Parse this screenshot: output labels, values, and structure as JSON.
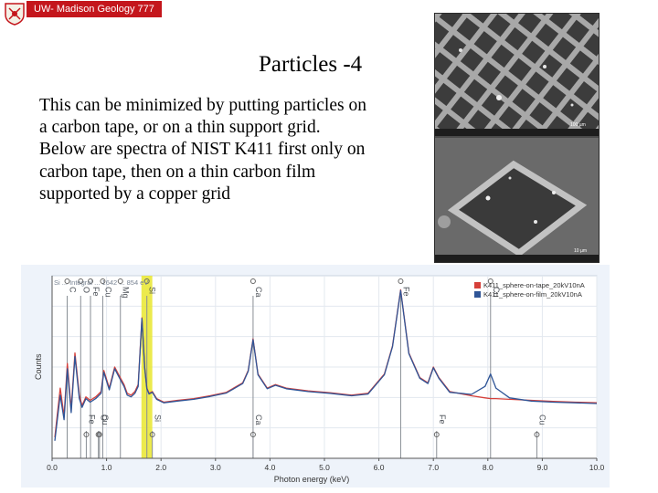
{
  "header": {
    "banner_text": "UW- Madison Geology 777"
  },
  "slide": {
    "title": "Particles -4",
    "body": "This can be minimized by putting particles on a carbon tape, or on a thin support grid. Below are spectra of NIST K411 first only on carbon tape, then on a thin carbon film supported by a copper grid"
  },
  "sem_images": {
    "top_scale": "100 µm",
    "bottom_scale": "10 µm"
  },
  "chart_data": {
    "type": "line",
    "xlabel": "Photon energy (keV)",
    "ylabel": "Counts",
    "xlim": [
      0.0,
      10.0
    ],
    "x_ticks": [
      "0.0",
      "1.0",
      "2.0",
      "3.0",
      "4.0",
      "5.0",
      "6.0",
      "7.0",
      "8.0",
      "9.0",
      "10.0"
    ],
    "grid": true,
    "legend_position": "top-right",
    "highlight_region_kev": [
      1.64,
      1.84
    ],
    "top_info_text": "Si ... Integral ... 1642 ... 854 eV",
    "series": [
      {
        "name": "K411_sphere-on-tape_20kV10nA",
        "color": "#d6403a",
        "x": [
          0.05,
          0.15,
          0.22,
          0.28,
          0.35,
          0.42,
          0.5,
          0.55,
          0.62,
          0.7,
          0.8,
          0.9,
          0.95,
          1.05,
          1.15,
          1.25,
          1.32,
          1.38,
          1.45,
          1.52,
          1.58,
          1.65,
          1.7,
          1.74,
          1.78,
          1.84,
          1.92,
          2.05,
          2.3,
          2.6,
          2.9,
          3.2,
          3.5,
          3.6,
          3.69,
          3.78,
          3.95,
          4.1,
          4.3,
          4.7,
          5.1,
          5.5,
          5.8,
          6.1,
          6.25,
          6.4,
          6.55,
          6.75,
          6.9,
          7.0,
          7.1,
          7.3,
          7.7,
          7.95,
          8.05,
          8.15,
          8.4,
          8.8,
          9.2,
          9.6,
          10.0
        ],
        "y": [
          60,
          200,
          120,
          270,
          140,
          300,
          180,
          150,
          175,
          165,
          175,
          190,
          250,
          200,
          260,
          230,
          210,
          185,
          180,
          190,
          210,
          400,
          260,
          200,
          185,
          190,
          170,
          160,
          165,
          170,
          178,
          188,
          215,
          250,
          340,
          240,
          200,
          210,
          200,
          192,
          187,
          180,
          185,
          240,
          320,
          480,
          300,
          230,
          215,
          260,
          230,
          190,
          178,
          172,
          170,
          170,
          168,
          165,
          162,
          160,
          158
        ]
      },
      {
        "name": "K411_sphere-on-film_20kV10nA",
        "color": "#2f5597",
        "x": [
          0.05,
          0.15,
          0.22,
          0.28,
          0.35,
          0.42,
          0.5,
          0.55,
          0.62,
          0.7,
          0.8,
          0.9,
          0.95,
          1.05,
          1.15,
          1.25,
          1.32,
          1.38,
          1.45,
          1.52,
          1.58,
          1.65,
          1.7,
          1.74,
          1.78,
          1.84,
          1.92,
          2.05,
          2.3,
          2.6,
          2.9,
          3.2,
          3.5,
          3.6,
          3.69,
          3.78,
          3.95,
          4.1,
          4.3,
          4.7,
          5.1,
          5.5,
          5.8,
          6.1,
          6.25,
          6.4,
          6.55,
          6.75,
          6.9,
          7.0,
          7.1,
          7.3,
          7.7,
          7.95,
          8.05,
          8.15,
          8.4,
          8.8,
          9.2,
          9.6,
          10.0
        ],
        "y": [
          50,
          180,
          110,
          255,
          130,
          290,
          170,
          145,
          170,
          160,
          170,
          185,
          245,
          195,
          255,
          225,
          205,
          180,
          175,
          185,
          205,
          398,
          258,
          198,
          183,
          188,
          168,
          158,
          163,
          168,
          176,
          186,
          213,
          248,
          338,
          238,
          198,
          208,
          198,
          190,
          185,
          178,
          183,
          238,
          318,
          478,
          298,
          228,
          213,
          258,
          228,
          188,
          182,
          205,
          240,
          200,
          172,
          163,
          160,
          158,
          156
        ]
      }
    ],
    "annotations": [
      {
        "label": "C",
        "x_kev": 0.277,
        "placement": "top"
      },
      {
        "label": "O",
        "x_kev": 0.525,
        "placement": "top"
      },
      {
        "label": "Fe",
        "x_kev": 0.705,
        "placement": "top"
      },
      {
        "label": "Cu",
        "x_kev": 0.93,
        "placement": "top"
      },
      {
        "label": "Mg",
        "x_kev": 1.254,
        "placement": "top"
      },
      {
        "label": "Si",
        "x_kev": 1.74,
        "placement": "top"
      },
      {
        "label": "Ca",
        "x_kev": 3.69,
        "placement": "top"
      },
      {
        "label": "Fe",
        "x_kev": 6.4,
        "placement": "top"
      },
      {
        "label": "Cu",
        "x_kev": 8.05,
        "placement": "top"
      },
      {
        "label": "Fe",
        "x_kev": 0.628,
        "placement": "bottom"
      },
      {
        "label": "O",
        "x_kev": 0.85,
        "placement": "bottom"
      },
      {
        "label": "Cu",
        "x_kev": 0.87,
        "placement": "bottom"
      },
      {
        "label": "Ca",
        "x_kev": 3.69,
        "placement": "bottom"
      },
      {
        "label": "Fe",
        "x_kev": 7.06,
        "placement": "bottom"
      },
      {
        "label": "Cu",
        "x_kev": 8.9,
        "placement": "bottom"
      },
      {
        "label": "Si",
        "x_kev": 1.84,
        "placement": "bottom"
      }
    ]
  }
}
